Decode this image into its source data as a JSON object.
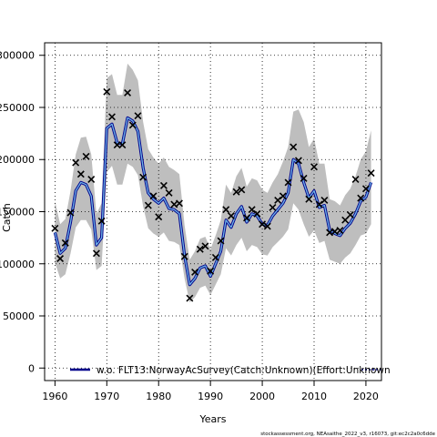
{
  "chart_data": {
    "type": "line",
    "xlabel": "Years",
    "ylabel": "Catch",
    "xlim": [
      1958,
      2023
    ],
    "ylim": [
      -12000,
      312000
    ],
    "x_ticks": [
      1960,
      1970,
      1980,
      1990,
      2000,
      2010,
      2020
    ],
    "x_tick_labels": [
      "1960",
      "1970",
      "1980",
      "1990",
      "2000",
      "2010",
      "2020"
    ],
    "y_ticks": [
      0,
      50000,
      100000,
      150000,
      200000,
      250000,
      300000
    ],
    "y_tick_labels": [
      "0",
      "50000",
      "100000",
      "150000",
      "200000",
      "250000",
      "300000"
    ],
    "grid": "dotted",
    "legend": {
      "placement": "bottom",
      "label": "w.o. FLT13:NorwayAcSurvey(Catch:Unknown)(Effort:Unknown"
    },
    "colors": {
      "band": "#bebebe",
      "fit_line": "#00008b",
      "fit_inner": "#6fb4e6",
      "observed": "#000000",
      "grid": "#000000"
    },
    "series": [
      {
        "kind": "observed",
        "marker": "cross",
        "x": [
          1960,
          1961,
          1962,
          1963,
          1964,
          1965,
          1966,
          1967,
          1968,
          1969,
          1970,
          1971,
          1972,
          1973,
          1974,
          1975,
          1976,
          1977,
          1978,
          1979,
          1980,
          1981,
          1982,
          1983,
          1984,
          1985,
          1986,
          1987,
          1988,
          1989,
          1990,
          1991,
          1992,
          1993,
          1994,
          1995,
          1996,
          1997,
          1998,
          1999,
          2000,
          2001,
          2002,
          2003,
          2004,
          2005,
          2006,
          2007,
          2008,
          2009,
          2010,
          2011,
          2012,
          2013,
          2014,
          2015,
          2016,
          2017,
          2018,
          2019,
          2020,
          2021
        ],
        "values": [
          134000,
          105000,
          120000,
          149000,
          197000,
          186000,
          203000,
          181000,
          110000,
          141000,
          265000,
          241000,
          214000,
          214000,
          264000,
          233000,
          242000,
          183000,
          156000,
          165000,
          145000,
          175000,
          168000,
          157000,
          158000,
          107000,
          67000,
          92000,
          114000,
          117000,
          93000,
          106000,
          122000,
          152000,
          146000,
          169000,
          171000,
          144000,
          152000,
          148000,
          138000,
          136000,
          154000,
          161000,
          165000,
          178000,
          212000,
          199000,
          182000,
          162000,
          193000,
          157000,
          161000,
          130000,
          131000,
          132000,
          142000,
          147000,
          181000,
          163000,
          172000,
          187000
        ]
      },
      {
        "kind": "fit",
        "x": [
          1960,
          1961,
          1962,
          1963,
          1964,
          1965,
          1966,
          1967,
          1968,
          1969,
          1970,
          1971,
          1972,
          1973,
          1974,
          1975,
          1976,
          1977,
          1978,
          1979,
          1980,
          1981,
          1982,
          1983,
          1984,
          1985,
          1986,
          1987,
          1988,
          1989,
          1990,
          1991,
          1992,
          1993,
          1994,
          1995,
          1996,
          1997,
          1998,
          1999,
          2000,
          2001,
          2002,
          2003,
          2004,
          2005,
          2006,
          2007,
          2008,
          2009,
          2010,
          2011,
          2012,
          2013,
          2014,
          2015,
          2016,
          2017,
          2018,
          2019,
          2020,
          2021
        ],
        "values": [
          130000,
          110000,
          115000,
          140000,
          170000,
          178000,
          176000,
          165000,
          118000,
          125000,
          230000,
          234000,
          216000,
          215000,
          240000,
          237000,
          227000,
          192000,
          168000,
          162000,
          158000,
          163000,
          153000,
          152000,
          148000,
          108000,
          80000,
          86000,
          96000,
          98000,
          88000,
          100000,
          112000,
          142000,
          135000,
          148000,
          155000,
          140000,
          148000,
          146000,
          138000,
          137000,
          146000,
          152000,
          158000,
          168000,
          200000,
          196000,
          178000,
          163000,
          170000,
          154000,
          156000,
          132000,
          129000,
          127000,
          134000,
          139000,
          148000,
          160000,
          164000,
          178000
        ]
      },
      {
        "kind": "band_upper",
        "values": [
          160000,
          138000,
          143000,
          170000,
          205000,
          221000,
          222000,
          205000,
          148000,
          158000,
          278000,
          282000,
          262000,
          262000,
          292000,
          286000,
          276000,
          236000,
          210000,
          202000,
          196000,
          202000,
          193000,
          190000,
          186000,
          137000,
          104000,
          112000,
          124000,
          126000,
          114000,
          127000,
          142000,
          176000,
          168000,
          184000,
          192000,
          174000,
          182000,
          180000,
          171000,
          168000,
          178000,
          186000,
          198000,
          212000,
          246000,
          248000,
          236000,
          212000,
          220000,
          196000,
          196000,
          162000,
          160000,
          156000,
          166000,
          172000,
          184000,
          200000,
          208000,
          228000
        ]
      },
      {
        "kind": "band_lower",
        "values": [
          101000,
          86000,
          90000,
          110000,
          135000,
          142000,
          142000,
          133000,
          94000,
          98000,
          188000,
          194000,
          176000,
          176000,
          196000,
          193000,
          185000,
          155000,
          134000,
          129000,
          126000,
          130000,
          122000,
          121000,
          118000,
          86000,
          63000,
          68000,
          77000,
          79000,
          70000,
          80000,
          90000,
          115000,
          108000,
          118000,
          125000,
          112000,
          118000,
          116000,
          109000,
          108000,
          116000,
          121000,
          126000,
          133000,
          158000,
          152000,
          138000,
          126000,
          132000,
          120000,
          122000,
          104000,
          102000,
          100000,
          106000,
          110000,
          118000,
          127000,
          129000,
          138000
        ]
      }
    ],
    "footer": "stockassessment.org, NEAsaithe_2022_v3, r16073, git:ec2c2a0c6dde"
  }
}
